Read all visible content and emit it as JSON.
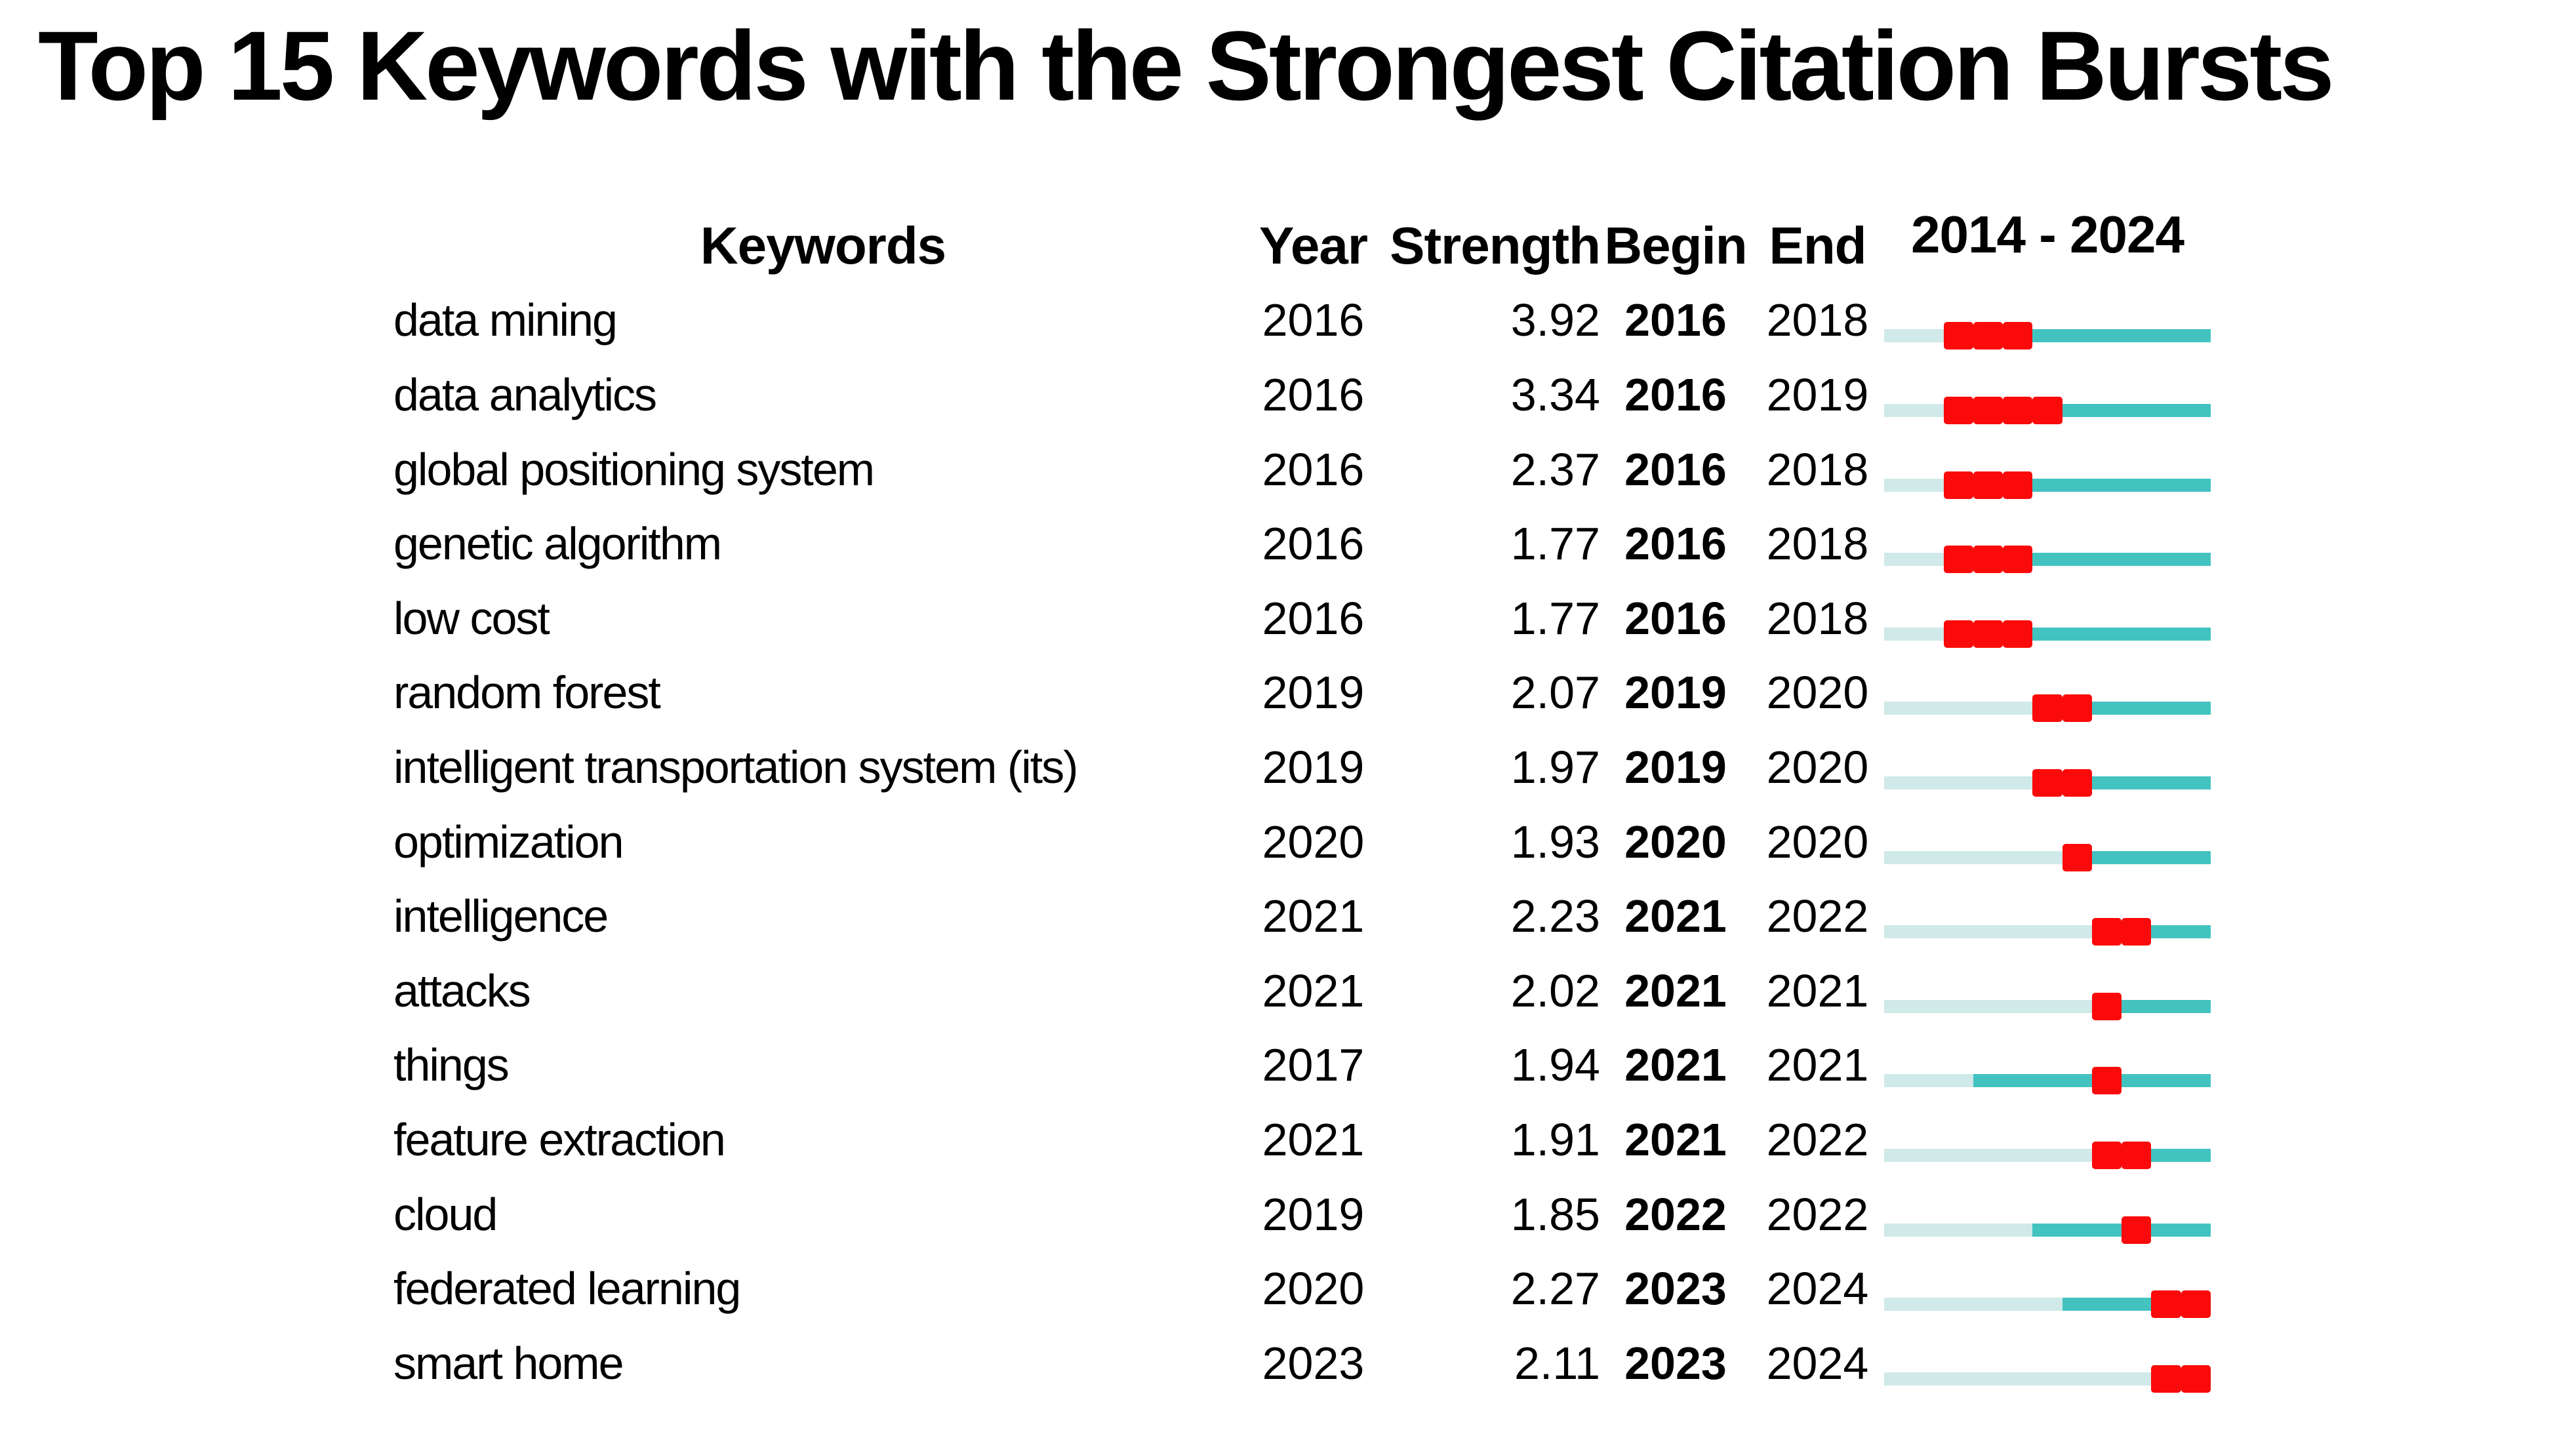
{
  "title": "Top 15 Keywords with the Strongest Citation Bursts",
  "table": {
    "headers": {
      "keywords": "Keywords",
      "year": "Year",
      "strength": "Strength",
      "begin": "Begin",
      "end": "End",
      "timeline": "2014 - 2024"
    }
  },
  "colors": {
    "burst": "#FA0A0A",
    "active": "#43C3C0",
    "inactive": "#D0E9E9",
    "text": "#000000",
    "background": "#FFFFFF"
  },
  "chart_data": {
    "type": "table",
    "title": "Top 15 Keywords with the Strongest Citation Bursts",
    "columns": [
      "Keywords",
      "Year",
      "Strength",
      "Begin",
      "End",
      "2014 - 2024"
    ],
    "timeline_range": [
      2014,
      2024
    ],
    "bar_encoding": {
      "inactive_before_first_year": "#D0E9E9",
      "active_years": "#43C3C0",
      "burst_years_begin_to_end": "#FA0A0A"
    },
    "rows": [
      {
        "keyword": "data mining",
        "year": 2016,
        "strength": 3.92,
        "begin": 2016,
        "end": 2018
      },
      {
        "keyword": "data analytics",
        "year": 2016,
        "strength": 3.34,
        "begin": 2016,
        "end": 2019
      },
      {
        "keyword": "global positioning system",
        "year": 2016,
        "strength": 2.37,
        "begin": 2016,
        "end": 2018
      },
      {
        "keyword": "genetic algorithm",
        "year": 2016,
        "strength": 1.77,
        "begin": 2016,
        "end": 2018
      },
      {
        "keyword": "low cost",
        "year": 2016,
        "strength": 1.77,
        "begin": 2016,
        "end": 2018
      },
      {
        "keyword": "random forest",
        "year": 2019,
        "strength": 2.07,
        "begin": 2019,
        "end": 2020
      },
      {
        "keyword": "intelligent transportation system (its)",
        "year": 2019,
        "strength": 1.97,
        "begin": 2019,
        "end": 2020
      },
      {
        "keyword": "optimization",
        "year": 2020,
        "strength": 1.93,
        "begin": 2020,
        "end": 2020
      },
      {
        "keyword": "intelligence",
        "year": 2021,
        "strength": 2.23,
        "begin": 2021,
        "end": 2022
      },
      {
        "keyword": "attacks",
        "year": 2021,
        "strength": 2.02,
        "begin": 2021,
        "end": 2021
      },
      {
        "keyword": "things",
        "year": 2017,
        "strength": 1.94,
        "begin": 2021,
        "end": 2021
      },
      {
        "keyword": "feature extraction",
        "year": 2021,
        "strength": 1.91,
        "begin": 2021,
        "end": 2022
      },
      {
        "keyword": "cloud",
        "year": 2019,
        "strength": 1.85,
        "begin": 2022,
        "end": 2022
      },
      {
        "keyword": "federated learning",
        "year": 2020,
        "strength": 2.27,
        "begin": 2023,
        "end": 2024
      },
      {
        "keyword": "smart home",
        "year": 2023,
        "strength": 2.11,
        "begin": 2023,
        "end": 2024
      }
    ]
  }
}
